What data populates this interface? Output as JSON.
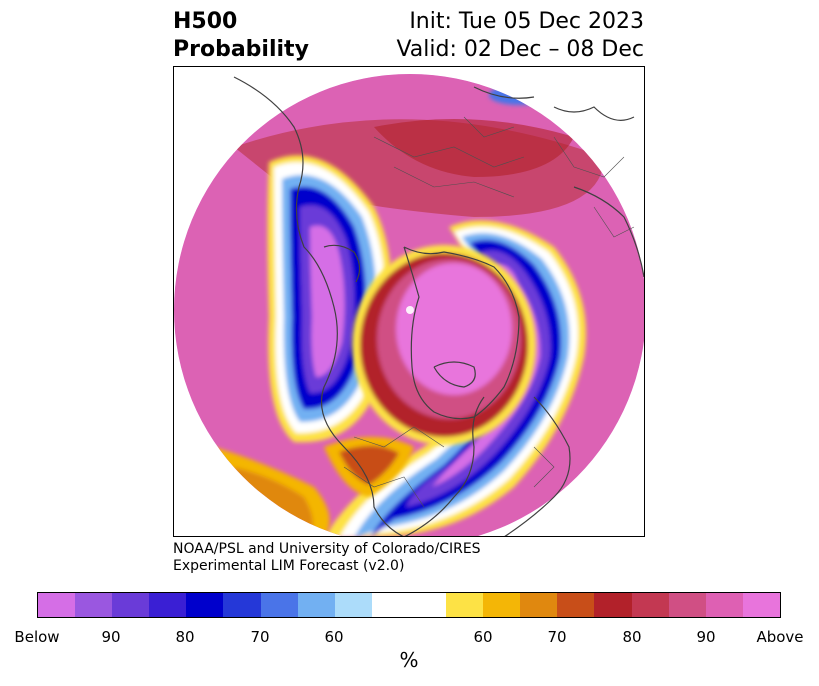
{
  "header": {
    "left_line1": "H500",
    "left_line2": "Probability",
    "right_line1": "Init: Tue 05 Dec 2023",
    "right_line2": "Valid: 02 Dec – 08 Dec"
  },
  "map": {
    "projection": "north-polar-stereographic",
    "features": [
      "coastlines",
      "country-borders"
    ]
  },
  "credit": {
    "line1": "NOAA/PSL and University of Colorado/CIRES",
    "line2": "Experimental LIM Forecast (v2.0)"
  },
  "colorbar": {
    "colors": [
      "#d56ee6",
      "#9a57e0",
      "#6a3bd8",
      "#3a1fd4",
      "#0000cc",
      "#2538d8",
      "#4a74e8",
      "#72b0f2",
      "#acdcfa",
      "#ffffff",
      "#ffffff",
      "#fde245",
      "#f4b606",
      "#e0880f",
      "#c84e19",
      "#b2212a",
      "#c33852",
      "#d04f84",
      "#de60b3",
      "#e874dc"
    ],
    "tick_labels": [
      "Below",
      "90",
      "80",
      "70",
      "60",
      "60",
      "70",
      "80",
      "90",
      "Above"
    ],
    "unit": "%"
  }
}
